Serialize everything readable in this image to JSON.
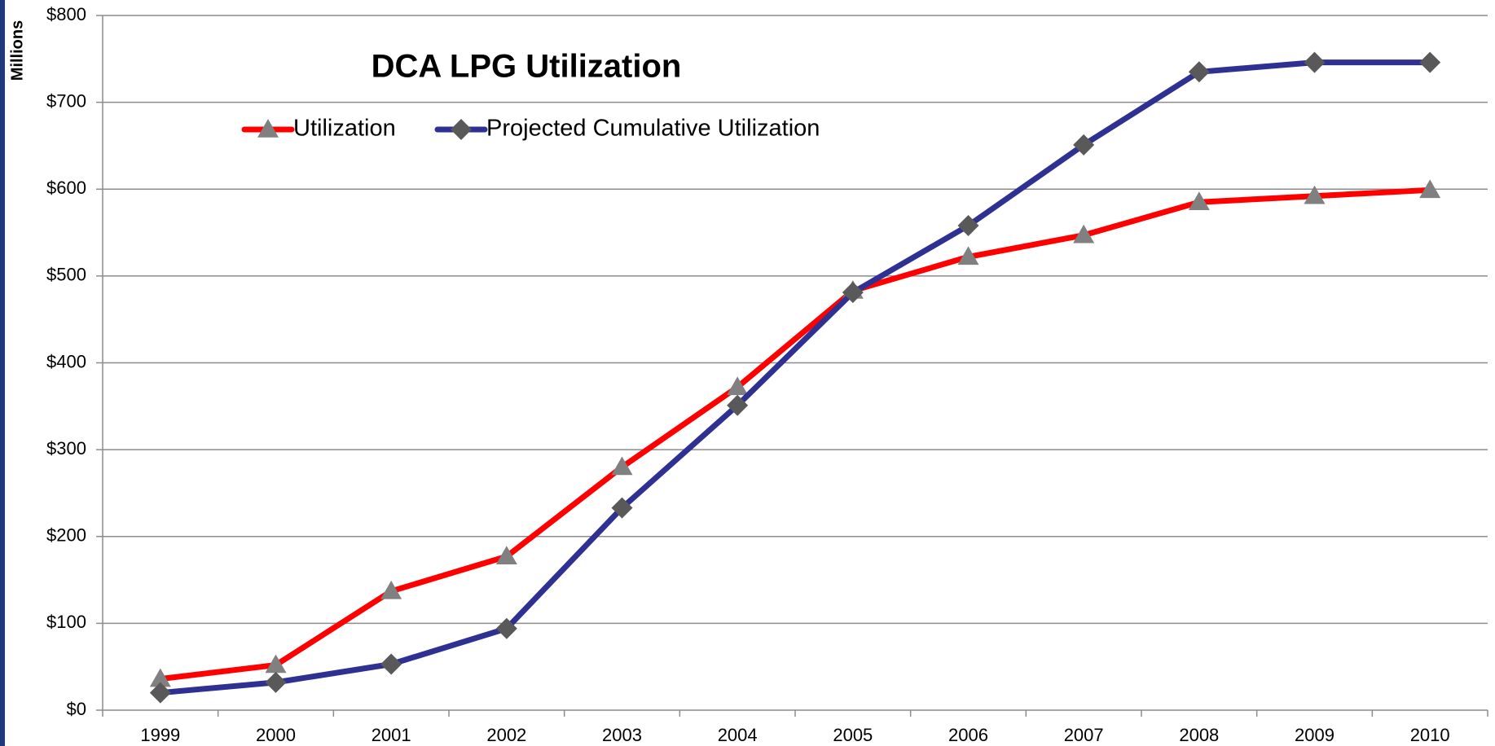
{
  "chart_data": {
    "type": "line",
    "title": "DCA LPG Utilization",
    "ylabel": "Millions",
    "categories": [
      "1999",
      "2000",
      "2001",
      "2002",
      "2003",
      "2004",
      "2005",
      "2006",
      "2007",
      "2008",
      "2009",
      "2010"
    ],
    "series": [
      {
        "name": "Utilization",
        "color": "#ff0000",
        "marker_color": "#808080",
        "marker": "triangle",
        "values": [
          36,
          52,
          137,
          177,
          280,
          372,
          483,
          522,
          547,
          585,
          592,
          599
        ]
      },
      {
        "name": "Projected Cumulative Utilization",
        "color": "#2e3192",
        "marker_color": "#595959",
        "marker": "diamond",
        "values": [
          20,
          32,
          53,
          94,
          233,
          351,
          481,
          558,
          651,
          735,
          746,
          746
        ]
      }
    ],
    "ylim": [
      0,
      800
    ],
    "yticks": [
      {
        "value": 0,
        "label": "$0"
      },
      {
        "value": 100,
        "label": "$100"
      },
      {
        "value": 200,
        "label": "$200"
      },
      {
        "value": 300,
        "label": "$300"
      },
      {
        "value": 400,
        "label": "$400"
      },
      {
        "value": 500,
        "label": "$500"
      },
      {
        "value": 600,
        "label": "$600"
      },
      {
        "value": 700,
        "label": "$700"
      },
      {
        "value": 800,
        "label": "$800"
      }
    ],
    "grid": true
  }
}
